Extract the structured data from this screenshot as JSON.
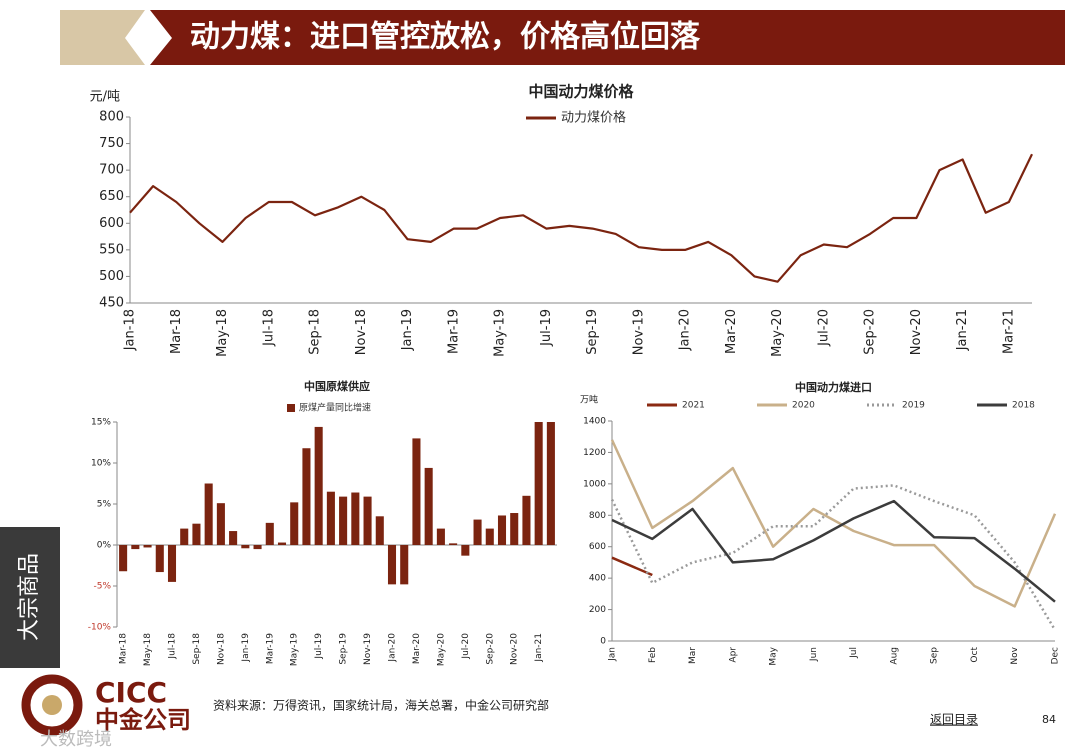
{
  "header": {
    "title": "动力煤：进口管控放松，价格高位回落"
  },
  "side_label": "大宗商品",
  "footer": {
    "logo_en": "CICC",
    "logo_cn": "中金公司",
    "source": "资料来源：万得资讯，国家统计局，海关总署，中金公司研究部",
    "back_link": "返回目录",
    "page_number": "84"
  },
  "watermark": "大数跨境",
  "chart_data": [
    {
      "type": "line",
      "title": "中国动力煤价格",
      "y_label": "元/吨",
      "categories": [
        "Jan-18",
        null,
        "Mar-18",
        null,
        "May-18",
        null,
        "Jul-18",
        null,
        "Sep-18",
        null,
        "Nov-18",
        null,
        "Jan-19",
        null,
        "Mar-19",
        null,
        "May-19",
        null,
        "Jul-19",
        null,
        "Sep-19",
        null,
        "Nov-19",
        null,
        "Jan-20",
        null,
        "Mar-20",
        null,
        "May-20",
        null,
        "Jul-20",
        null,
        "Sep-20",
        null,
        "Nov-20",
        null,
        "Jan-21",
        null,
        "Mar-21",
        null
      ],
      "series": [
        {
          "name": "动力煤价格",
          "color": "#7b2410",
          "values": [
            620,
            670,
            640,
            600,
            565,
            610,
            640,
            640,
            615,
            630,
            650,
            625,
            570,
            565,
            590,
            590,
            610,
            615,
            590,
            595,
            590,
            580,
            555,
            550,
            550,
            565,
            540,
            500,
            490,
            540,
            560,
            555,
            580,
            610,
            610,
            700,
            720,
            620,
            640,
            730
          ]
        }
      ],
      "ylim": [
        450,
        800
      ],
      "yticks": [
        450,
        500,
        550,
        600,
        650,
        700,
        750,
        800
      ],
      "grid": false,
      "legend": "top"
    },
    {
      "type": "bar",
      "title": "中国原煤供应",
      "categories": [
        "Mar-18",
        null,
        "May-18",
        null,
        "Jul-18",
        null,
        "Sep-18",
        null,
        "Nov-18",
        null,
        "Jan-19",
        null,
        "Mar-19",
        null,
        "May-19",
        null,
        "Jul-19",
        null,
        "Sep-19",
        null,
        "Nov-19",
        null,
        "Jan-20",
        null,
        "Mar-20",
        null,
        "May-20",
        null,
        "Jul-20",
        null,
        "Sep-20",
        null,
        "Nov-20",
        null,
        "Jan-21",
        null
      ],
      "series": [
        {
          "name": "原煤产量同比增速",
          "color": "#7b2410",
          "values": [
            -3.2,
            -0.5,
            -0.3,
            -3.3,
            -4.5,
            2.0,
            2.6,
            7.5,
            5.1,
            1.7,
            -0.4,
            -0.5,
            2.7,
            0.3,
            5.2,
            11.8,
            14.4,
            6.5,
            5.9,
            6.4,
            5.9,
            3.5,
            -4.8,
            -4.8,
            13.0,
            9.4,
            2.0,
            0.2,
            -1.3,
            3.1,
            2.0,
            3.6,
            3.9,
            6.0,
            15,
            15
          ]
        }
      ],
      "ylim": [
        -10,
        15
      ],
      "yticks": [
        {
          "value": -10,
          "label": "-10%"
        },
        {
          "value": -5,
          "label": "-5%"
        },
        {
          "value": 0,
          "label": "0%"
        },
        {
          "value": 5,
          "label": "5%"
        },
        {
          "value": 10,
          "label": "10%"
        },
        {
          "value": 15,
          "label": "15%"
        }
      ],
      "negative_tick_color": "#c0392b",
      "grid": false,
      "legend": "top"
    },
    {
      "type": "line",
      "title": "中国动力煤进口",
      "y_label": "万吨",
      "categories": [
        "Jan",
        "Feb",
        "Mar",
        "Apr",
        "May",
        "Jun",
        "Jul",
        "Aug",
        "Sep",
        "Oct",
        "Nov",
        "Dec"
      ],
      "series": [
        {
          "name": "2021",
          "color": "#8b2a12",
          "dash": false,
          "values": [
            530,
            420,
            null,
            null,
            null,
            null,
            null,
            null,
            null,
            null,
            null,
            null
          ]
        },
        {
          "name": "2020",
          "color": "#c9b08a",
          "dash": false,
          "values": [
            1280,
            720,
            890,
            1100,
            600,
            840,
            700,
            610,
            610,
            350,
            220,
            810
          ]
        },
        {
          "name": "2019",
          "color": "#9a9a9a",
          "dash": true,
          "values": [
            900,
            370,
            500,
            560,
            730,
            730,
            970,
            990,
            890,
            800,
            500,
            70
          ]
        },
        {
          "name": "2018",
          "color": "#3c3c3c",
          "dash": false,
          "values": [
            770,
            650,
            840,
            500,
            520,
            640,
            780,
            890,
            660,
            655,
            460,
            250
          ]
        }
      ],
      "ylim": [
        0,
        1400
      ],
      "yticks": [
        0,
        200,
        400,
        600,
        800,
        1000,
        1200,
        1400
      ],
      "grid": false,
      "legend": "top"
    }
  ]
}
